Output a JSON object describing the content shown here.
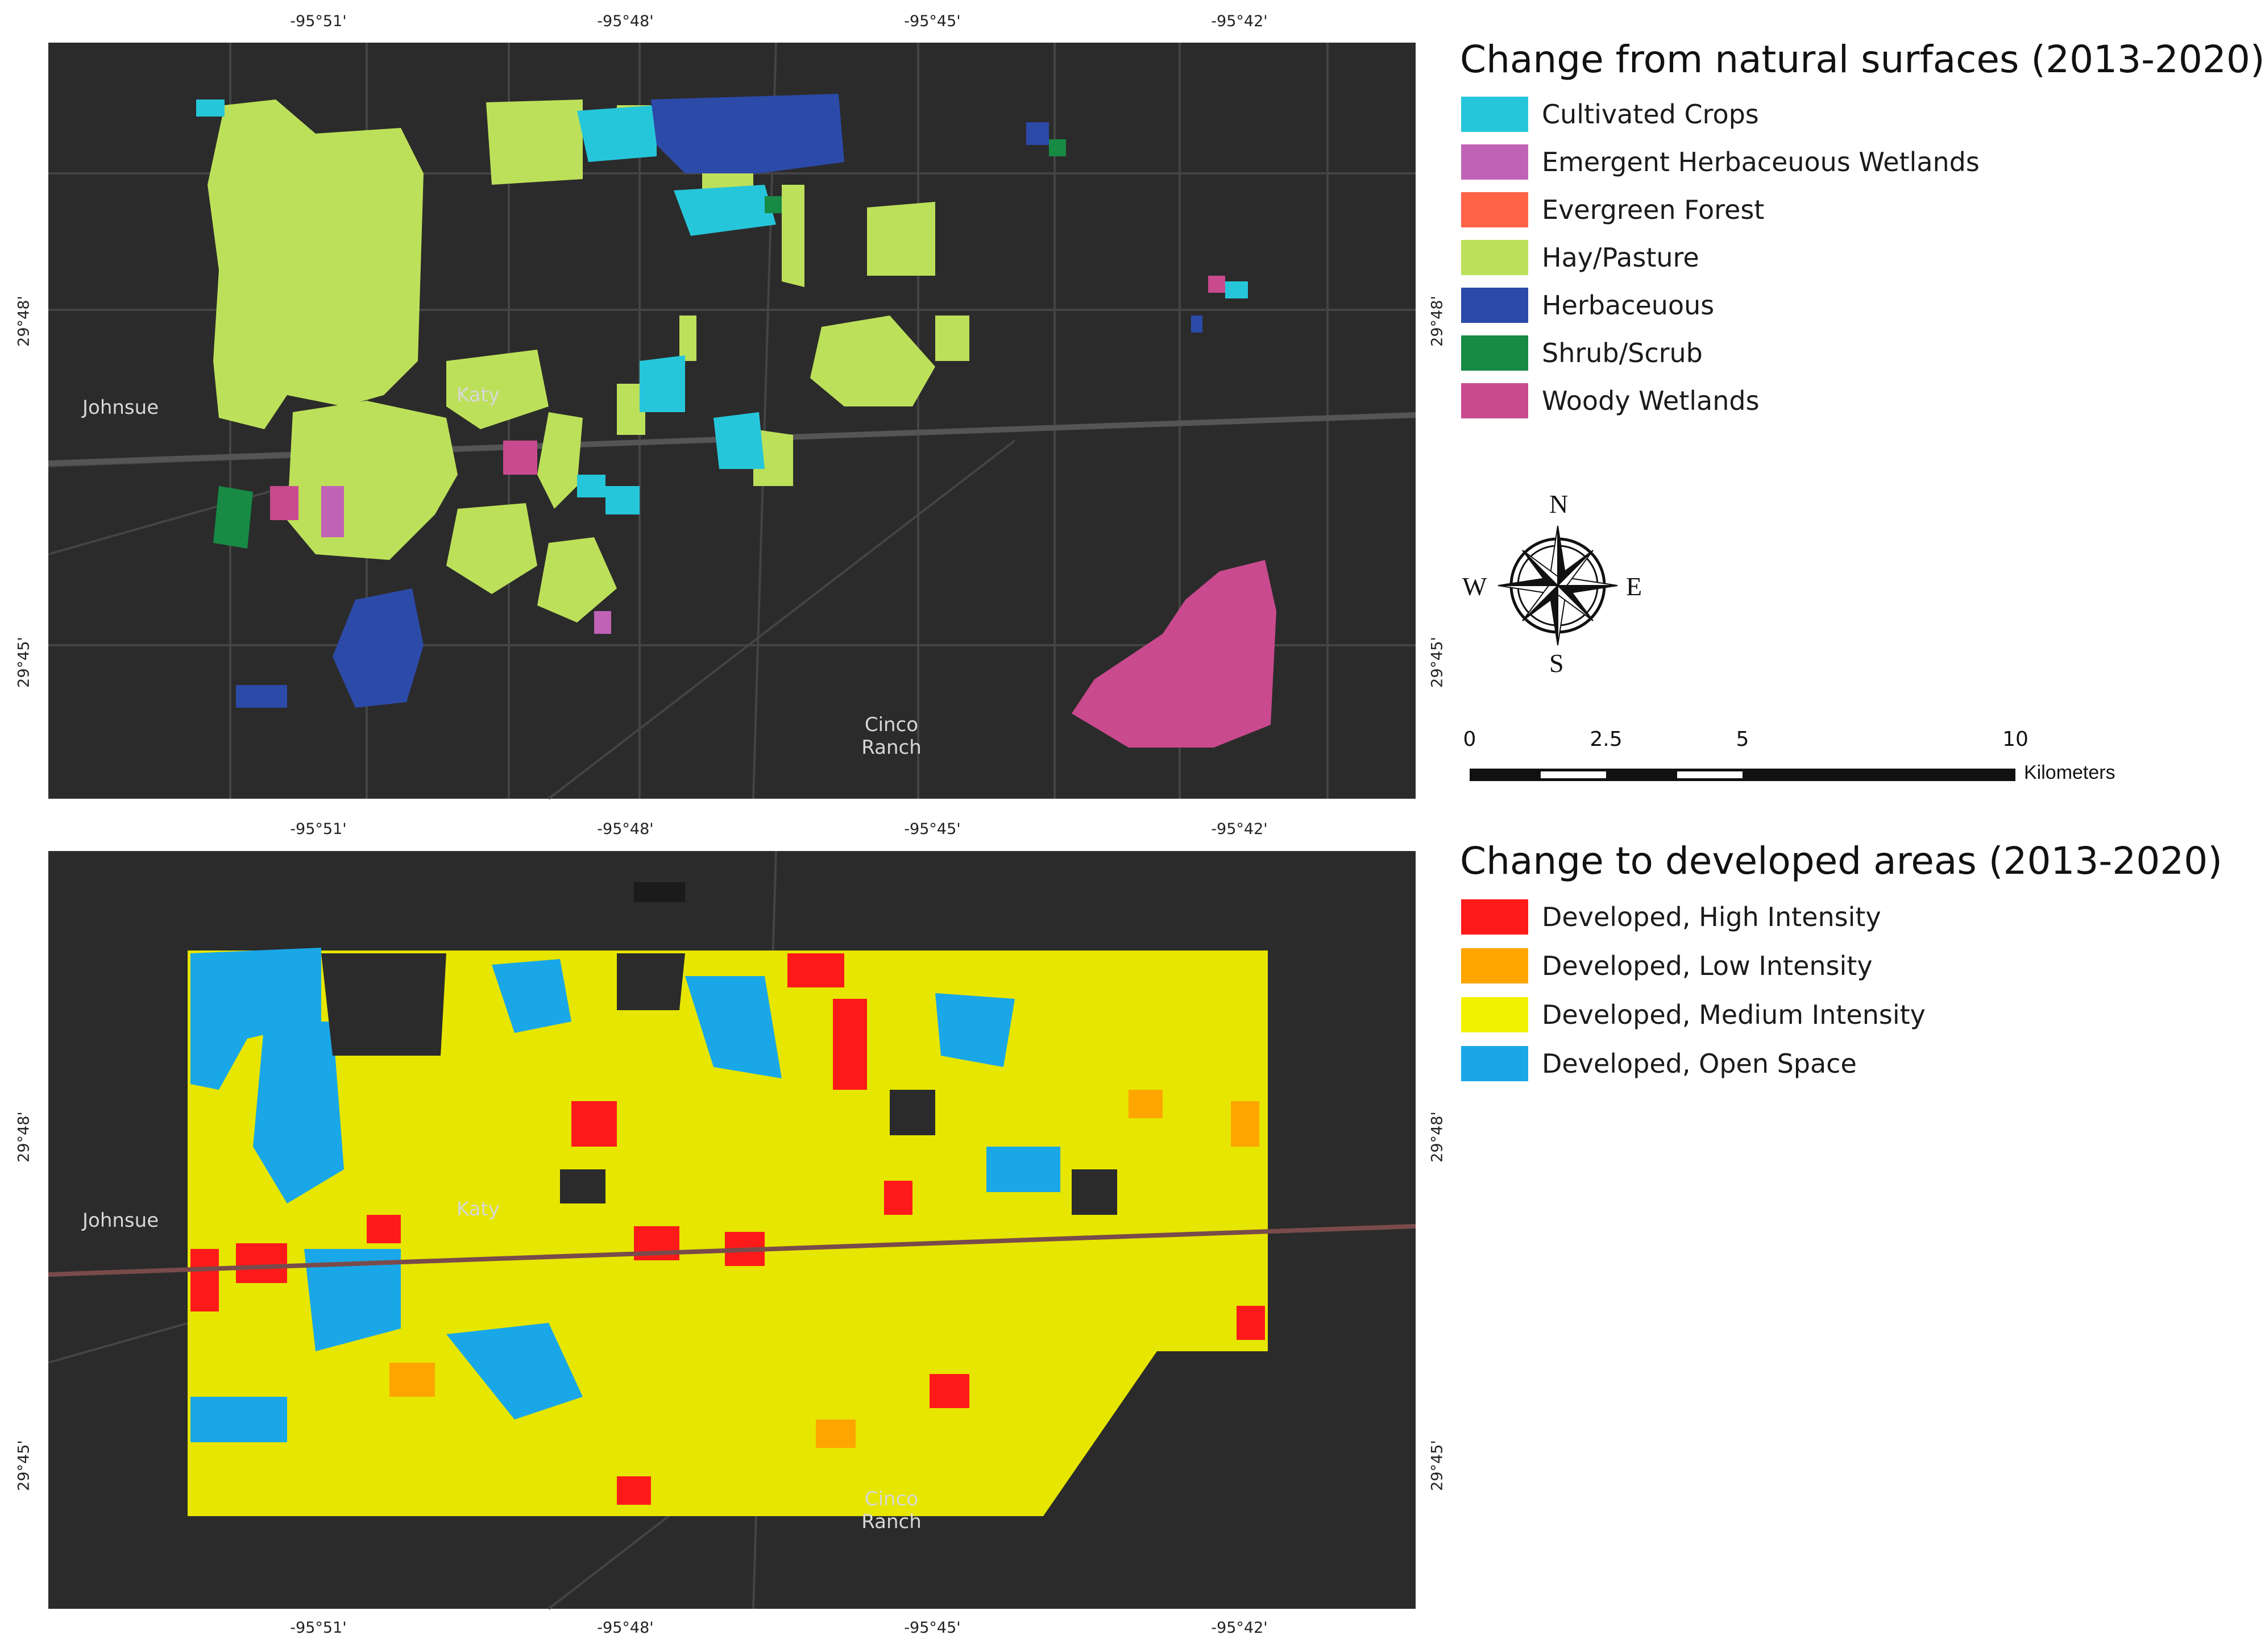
{
  "maps": {
    "top": {
      "legend_title": "Change from natural surfaces (2013-2020)",
      "legend": [
        {
          "label": "Cultivated Crops",
          "color": "#26c6da"
        },
        {
          "label": "Emergent Herbaceuous Wetlands",
          "color": "#c062b6"
        },
        {
          "label": "Evergreen Forest",
          "color": "#ff6347"
        },
        {
          "label": "Hay/Pasture",
          "color": "#bde05a"
        },
        {
          "label": "Herbaceuous",
          "color": "#2c4aa8"
        },
        {
          "label": "Shrub/Scrub",
          "color": "#178a44"
        },
        {
          "label": "Woody Wetlands",
          "color": "#c94a8e"
        }
      ],
      "places": {
        "johnsue": "Johnsue",
        "katy": "Katy",
        "cinco_line1": "Cinco",
        "cinco_line2": "Ranch"
      }
    },
    "bottom": {
      "legend_title": "Change to developed areas (2013-2020)",
      "legend": [
        {
          "label": "Developed, High Intensity",
          "color": "#ff1a1a"
        },
        {
          "label": "Developed, Low Intensity",
          "color": "#ffa500"
        },
        {
          "label": "Developed, Medium Intensity",
          "color": "#f2f200"
        },
        {
          "label": "Developed, Open Space",
          "color": "#1aa7e8"
        }
      ],
      "places": {
        "johnsue": "Johnsue",
        "katy": "Katy",
        "cinco_line1": "Cinco",
        "cinco_line2": "Ranch"
      }
    }
  },
  "graticule": {
    "longitudes": [
      "-95°51'",
      "-95°48'",
      "-95°45'",
      "-95°42'"
    ],
    "latitudes": [
      "29°48'",
      "29°45'"
    ]
  },
  "compass": {
    "n": "N",
    "s": "S",
    "e": "E",
    "w": "W"
  },
  "scalebar": {
    "ticks": [
      "0",
      "2.5",
      "5",
      "10"
    ],
    "units": "Kilometers"
  },
  "colors": {
    "basemap": "#2b2b2b",
    "roads": "#454545"
  }
}
